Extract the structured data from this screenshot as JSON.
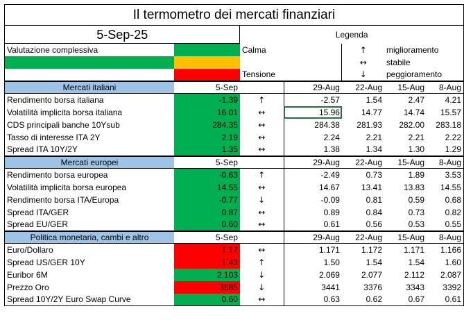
{
  "title": "Il termometro dei mercati finanziari",
  "date": "5-Sep-25",
  "legend": {
    "heading": "Legenda",
    "overall_label": "Valutazione complessiva",
    "calm": "Calma",
    "tension": "Tensione",
    "arrows": [
      {
        "symbol": "↑",
        "label": "miglioramento"
      },
      {
        "symbol": "↔",
        "label": "stabile"
      },
      {
        "symbol": "↓",
        "label": "peggioramento"
      }
    ],
    "colors": {
      "green": "#00b050",
      "yellow": "#ffc000",
      "red": "#ff0000",
      "section": "#9dc3e6"
    }
  },
  "sections": [
    {
      "name": "Mercati italiani",
      "cols": [
        "5-Sep",
        "29-Aug",
        "22-Aug",
        "15-Aug",
        "8-Aug"
      ],
      "rows": [
        {
          "label": "Rendimento borsa italiana",
          "current": "-1.39",
          "status": "green",
          "trend": "↑",
          "history": [
            "-2.57",
            "1.54",
            "2.47",
            "4.21"
          ]
        },
        {
          "label": "Volatilità implicita borsa italiana",
          "current": "16.01",
          "status": "green",
          "trend": "↔",
          "history": [
            "15.96",
            "14.77",
            "14.74",
            "15.57"
          ]
        },
        {
          "label": "CDS principali banche 10Ysub",
          "current": "284.35",
          "status": "green",
          "trend": "↔",
          "history": [
            "284.38",
            "281.93",
            "282.00",
            "283.18"
          ]
        },
        {
          "label": "Tasso di interesse ITA 2Y",
          "current": "2.19",
          "status": "green",
          "trend": "↔",
          "history": [
            "2.24",
            "2.21",
            "2.21",
            "2.22"
          ]
        },
        {
          "label": "Spread ITA 10Y/2Y",
          "current": "1.35",
          "status": "green",
          "trend": "↔",
          "history": [
            "1.38",
            "1.34",
            "1.30",
            "1.29"
          ]
        }
      ]
    },
    {
      "name": "Mercati europei",
      "cols": [
        "5-Sep",
        "29-Aug",
        "22-Aug",
        "15-Aug",
        "8-Aug"
      ],
      "rows": [
        {
          "label": "Rendimento borsa europea",
          "current": "-0.63",
          "status": "green",
          "trend": "↑",
          "history": [
            "-2.49",
            "0.73",
            "1.89",
            "3.53"
          ]
        },
        {
          "label": "Volatilità implicita borsa europea",
          "current": "14.55",
          "status": "green",
          "trend": "↔",
          "history": [
            "14.67",
            "13.41",
            "13.83",
            "14.55"
          ]
        },
        {
          "label": "Rendimento borsa ITA/Europa",
          "current": "-0.77",
          "status": "green",
          "trend": "↓",
          "history": [
            "-0.09",
            "0.81",
            "0.59",
            "0.68"
          ]
        },
        {
          "label": "Spread ITA/GER",
          "current": "0.87",
          "status": "green",
          "trend": "↔",
          "history": [
            "0.89",
            "0.84",
            "0.73",
            "0.82"
          ]
        },
        {
          "label": "Spread EU/GER",
          "current": "0.60",
          "status": "green",
          "trend": "↔",
          "history": [
            "0.61",
            "0.56",
            "0.53",
            "0.55"
          ]
        }
      ]
    },
    {
      "name": "Politica monetaria, cambi e altro",
      "cols": [
        "5-Sep",
        "29-Aug",
        "22-Aug",
        "15-Aug",
        "8-Aug"
      ],
      "rows": [
        {
          "label": "Euro/Dollaro",
          "current": "1.17",
          "status": "red",
          "trend": "↔",
          "history": [
            "1.171",
            "1.172",
            "1.171",
            "1.166"
          ]
        },
        {
          "label": "Spread US/GER 10Y",
          "current": "1.43",
          "status": "red",
          "trend": "↑",
          "history": [
            "1.50",
            "1.54",
            "1.54",
            "1.60"
          ]
        },
        {
          "label": "Euribor 6M",
          "current": "2.103",
          "status": "green",
          "trend": "↓",
          "history": [
            "2.069",
            "2.077",
            "2.112",
            "2.087"
          ]
        },
        {
          "label": "Prezzo Oro",
          "current": "3585",
          "status": "red",
          "trend": "↓",
          "history": [
            "3441",
            "3376",
            "3343",
            "3392"
          ]
        },
        {
          "label": "Spread 10Y/2Y Euro Swap Curve",
          "current": "0.60",
          "status": "green",
          "trend": "↔",
          "history": [
            "0.63",
            "0.62",
            "0.67",
            "0.61"
          ]
        }
      ]
    }
  ]
}
